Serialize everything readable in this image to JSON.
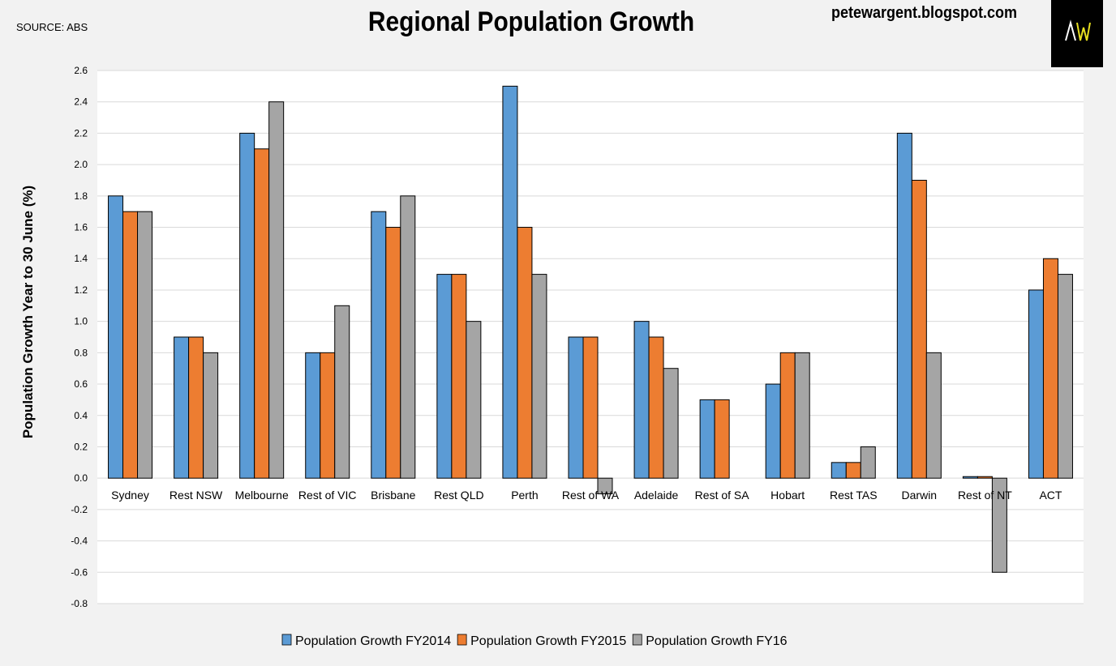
{
  "source": "SOURCE: ABS",
  "blog": "petewargent.blogspot.com",
  "logo_text": "AW",
  "chart_data": {
    "type": "bar",
    "title": "Regional Population Growth",
    "ylabel": "Population Growth Year to 30 June (%)",
    "xlabel": "",
    "ylim": [
      -0.8,
      2.6
    ],
    "yticks": [
      "-0.8",
      "-0.6",
      "-0.4",
      "-0.2",
      "0.0",
      "0.2",
      "0.4",
      "0.6",
      "0.8",
      "1.0",
      "1.2",
      "1.4",
      "1.6",
      "1.8",
      "2.0",
      "2.2",
      "2.4",
      "2.6"
    ],
    "grid": true,
    "legend_position": "bottom",
    "categories": [
      "Sydney",
      "Rest NSW",
      "Melbourne",
      "Rest of VIC",
      "Brisbane",
      "Rest QLD",
      "Perth",
      "Rest of WA",
      "Adelaide",
      "Rest of SA",
      "Hobart",
      "Rest TAS",
      "Darwin",
      "Rest of NT",
      "ACT"
    ],
    "series": [
      {
        "name": "Population Growth FY2014",
        "color": "#5b9bd5",
        "values": [
          1.8,
          0.9,
          2.2,
          0.8,
          1.7,
          1.3,
          2.5,
          0.9,
          1.0,
          0.5,
          0.6,
          0.1,
          2.2,
          0.01,
          1.2
        ]
      },
      {
        "name": "Population Growth FY2015",
        "color": "#ed7d31",
        "values": [
          1.7,
          0.9,
          2.1,
          0.8,
          1.6,
          1.3,
          1.6,
          0.9,
          0.9,
          0.5,
          0.8,
          0.1,
          1.9,
          0.01,
          1.4
        ]
      },
      {
        "name": "Population Growth FY16",
        "color": "#a5a5a5",
        "values": [
          1.7,
          0.8,
          2.4,
          1.1,
          1.8,
          1.0,
          1.3,
          -0.1,
          0.7,
          0.0,
          0.8,
          0.2,
          0.8,
          -0.6,
          1.3
        ]
      }
    ]
  }
}
